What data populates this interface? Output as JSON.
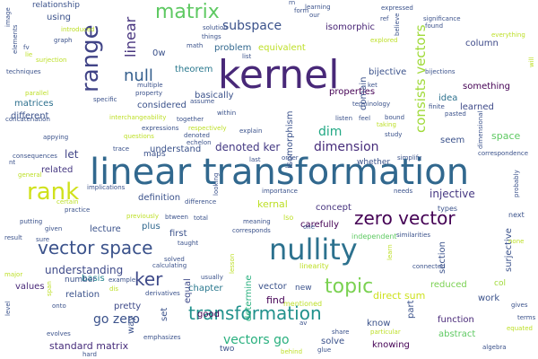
{
  "words": [
    {
      "text": "linear transformation",
      "color": "#31688e"
    },
    {
      "text": "kernel",
      "color": "#482878"
    },
    {
      "text": "nullity",
      "color": "#2c718e"
    },
    {
      "text": "rank",
      "color": "#d0e11c"
    },
    {
      "text": "range",
      "color": "#414487"
    },
    {
      "text": "matrix",
      "color": "#5ec962"
    },
    {
      "text": "zero vector",
      "color": "#440154"
    },
    {
      "text": "vector space",
      "color": "#3b528b"
    },
    {
      "text": "topic",
      "color": "#7ad151"
    },
    {
      "text": "transformation",
      "color": "#21918c"
    },
    {
      "text": "ker",
      "color": "#3e4a89"
    },
    {
      "text": "null",
      "color": "#355f8d"
    },
    {
      "text": "linear",
      "color": "#46337e"
    },
    {
      "text": "consists vectors",
      "color": "#a0da39"
    },
    {
      "text": "subspace",
      "color": "#3b528b"
    },
    {
      "text": "dimension",
      "color": "#472d7b"
    },
    {
      "text": "dim",
      "color": "#22a884"
    },
    {
      "text": "space",
      "color": "#5ec962"
    },
    {
      "text": "injective",
      "color": "#453781"
    },
    {
      "text": "go zero",
      "color": "#3b528b"
    },
    {
      "text": "vectors go",
      "color": "#2ab07f"
    },
    {
      "text": "denoted ker",
      "color": "#443983"
    },
    {
      "text": "isomorphic",
      "color": "#482475"
    },
    {
      "text": "theorem",
      "color": "#2a788e"
    },
    {
      "text": "problem",
      "color": "#31688e"
    },
    {
      "text": "equivalent",
      "color": "#bddf26"
    },
    {
      "text": "bijective",
      "color": "#3b528b"
    },
    {
      "text": "properties",
      "color": "#440154"
    },
    {
      "text": "something",
      "color": "#440154"
    },
    {
      "text": "idea",
      "color": "#2c718e"
    },
    {
      "text": "learned",
      "color": "#3e4a89"
    },
    {
      "text": "matrices",
      "color": "#2d708e"
    },
    {
      "text": "different",
      "color": "#3b528b"
    },
    {
      "text": "related",
      "color": "#453781"
    },
    {
      "text": "let",
      "color": "#414487"
    },
    {
      "text": "understanding",
      "color": "#3e4a89"
    },
    {
      "text": "basis",
      "color": "#25858e"
    },
    {
      "text": "relation",
      "color": "#3b528b"
    },
    {
      "text": "values",
      "color": "#482878"
    },
    {
      "text": "standard matrix",
      "color": "#472d7b"
    },
    {
      "text": "column",
      "color": "#3e4a89"
    },
    {
      "text": "concept",
      "color": "#46337e"
    },
    {
      "text": "find",
      "color": "#440154"
    },
    {
      "text": "solve",
      "color": "#3b528b"
    },
    {
      "text": "function",
      "color": "#482878"
    },
    {
      "text": "reduced",
      "color": "#7ad151"
    },
    {
      "text": "work",
      "color": "#3b528b"
    },
    {
      "text": "abstract",
      "color": "#5ec962"
    },
    {
      "text": "seem",
      "color": "#3b528b"
    },
    {
      "text": "kernal",
      "color": "#bddf26"
    },
    {
      "text": "carefully",
      "color": "#440154"
    },
    {
      "text": "vector",
      "color": "#3b528b"
    },
    {
      "text": "direct sum",
      "color": "#cde11d"
    },
    {
      "text": "definition",
      "color": "#3b528b"
    },
    {
      "text": "lecture",
      "color": "#3b528b"
    },
    {
      "text": "plus",
      "color": "#31688e"
    },
    {
      "text": "first",
      "color": "#3b528b"
    },
    {
      "text": "chapter",
      "color": "#2a788e"
    },
    {
      "text": "good",
      "color": "#440154"
    },
    {
      "text": "equal",
      "color": "#3e4a89"
    },
    {
      "text": "set",
      "color": "#3b528b"
    },
    {
      "text": "two",
      "color": "#3b528b"
    },
    {
      "text": "know",
      "color": "#3b528b"
    },
    {
      "text": "knowing",
      "color": "#440154"
    },
    {
      "text": "pretty",
      "color": "#3e4a89"
    },
    {
      "text": "number",
      "color": "#3b528b"
    },
    {
      "text": "understand",
      "color": "#3b528b"
    },
    {
      "text": "maps",
      "color": "#3b528b"
    },
    {
      "text": "considered",
      "color": "#3b528b"
    },
    {
      "text": "basically",
      "color": "#3b528b"
    },
    {
      "text": "using",
      "color": "#3b528b"
    },
    {
      "text": "relationship",
      "color": "#3b528b"
    },
    {
      "text": "isomorphism",
      "color": "#3b528b"
    },
    {
      "text": "surjective",
      "color": "#3b528b"
    },
    {
      "text": "domain",
      "color": "#3b528b"
    },
    {
      "text": "section",
      "color": "#3b528b"
    },
    {
      "text": "part",
      "color": "#3b528b"
    },
    {
      "text": "way",
      "color": "#3b528b"
    },
    {
      "text": "0w",
      "color": "#3b528b"
    },
    {
      "text": "whether",
      "color": "#3b528b"
    },
    {
      "text": "col",
      "color": "#a0da39"
    },
    {
      "text": "determine",
      "color": "#2ab07f"
    },
    {
      "text": "new",
      "color": "#3b528b"
    },
    {
      "text": "mentioned",
      "color": "#bddf26"
    },
    {
      "text": "linearity",
      "color": "#bddf26"
    },
    {
      "text": "independent",
      "color": "#5ec962"
    },
    {
      "text": "types",
      "color": "#3b528b"
    },
    {
      "text": "next",
      "color": "#3b528b"
    },
    {
      "text": "needs",
      "color": "#3b528b"
    },
    {
      "text": "importance",
      "color": "#3b528b"
    },
    {
      "text": "meaning",
      "color": "#3b528b"
    },
    {
      "text": "corresponds",
      "color": "#3b528b"
    },
    {
      "text": "lso",
      "color": "#bddf26"
    },
    {
      "text": "total",
      "color": "#3b528b"
    },
    {
      "text": "taught",
      "color": "#3b528b"
    },
    {
      "text": "solved",
      "color": "#3b528b"
    },
    {
      "text": "calculating",
      "color": "#3b528b"
    },
    {
      "text": "usually",
      "color": "#3b528b"
    },
    {
      "text": "derivatives",
      "color": "#3b528b"
    },
    {
      "text": "emphasizes",
      "color": "#3b528b"
    },
    {
      "text": "evolves",
      "color": "#3b528b"
    },
    {
      "text": "hard",
      "color": "#3b528b"
    },
    {
      "text": "onto",
      "color": "#3b528b"
    },
    {
      "text": "major",
      "color": "#bddf26"
    },
    {
      "text": "result",
      "color": "#3b528b"
    },
    {
      "text": "sure",
      "color": "#3b528b"
    },
    {
      "text": "practice",
      "color": "#3b528b"
    },
    {
      "text": "putting",
      "color": "#3b528b"
    },
    {
      "text": "given",
      "color": "#3b528b"
    },
    {
      "text": "certain",
      "color": "#bddf26"
    },
    {
      "text": "implications",
      "color": "#3b528b"
    },
    {
      "text": "trace",
      "color": "#3b528b"
    },
    {
      "text": "simplify",
      "color": "#3b528b"
    },
    {
      "text": "order",
      "color": "#3b528b"
    },
    {
      "text": "last",
      "color": "#3b528b"
    },
    {
      "text": "explain",
      "color": "#3b528b"
    },
    {
      "text": "study",
      "color": "#3b528b"
    },
    {
      "text": "terminology",
      "color": "#3b528b"
    },
    {
      "text": "listen",
      "color": "#3b528b"
    },
    {
      "text": "feel",
      "color": "#3b528b"
    },
    {
      "text": "bound",
      "color": "#3b528b"
    },
    {
      "text": "taking",
      "color": "#bddf26"
    },
    {
      "text": "finite",
      "color": "#3b528b"
    },
    {
      "text": "pasted",
      "color": "#3b528b"
    },
    {
      "text": "bijections",
      "color": "#3b528b"
    },
    {
      "text": "ref",
      "color": "#3b528b"
    },
    {
      "text": "explored",
      "color": "#bddf26"
    },
    {
      "text": "significance",
      "color": "#3b528b"
    },
    {
      "text": "found",
      "color": "#3b528b"
    },
    {
      "text": "everything",
      "color": "#bddf26"
    },
    {
      "text": "expressed",
      "color": "#3b528b"
    },
    {
      "text": "learning",
      "color": "#3b528b"
    },
    {
      "text": "form",
      "color": "#3b528b"
    },
    {
      "text": "rn",
      "color": "#3b528b"
    },
    {
      "text": "introduced",
      "color": "#bddf26"
    },
    {
      "text": "graph",
      "color": "#3b528b"
    },
    {
      "text": "surjection",
      "color": "#bddf26"
    },
    {
      "text": "techniques",
      "color": "#3b528b"
    },
    {
      "text": "parallel",
      "color": "#bddf26"
    },
    {
      "text": "specific",
      "color": "#3b528b"
    },
    {
      "text": "property",
      "color": "#3b528b"
    },
    {
      "text": "multiple",
      "color": "#3b528b"
    },
    {
      "text": "assume",
      "color": "#3b528b"
    },
    {
      "text": "within",
      "color": "#3b528b"
    },
    {
      "text": "interchangeability",
      "color": "#bddf26"
    },
    {
      "text": "together",
      "color": "#3b528b"
    },
    {
      "text": "expressions",
      "color": "#3b528b"
    },
    {
      "text": "respectively",
      "color": "#bddf26"
    },
    {
      "text": "appying",
      "color": "#3b528b"
    },
    {
      "text": "consequences",
      "color": "#3b528b"
    },
    {
      "text": "general",
      "color": "#bddf26"
    },
    {
      "text": "denoted",
      "color": "#3b528b"
    },
    {
      "text": "echelon",
      "color": "#3b528b"
    },
    {
      "text": "questions",
      "color": "#bddf26"
    },
    {
      "text": "difference",
      "color": "#3b528b"
    },
    {
      "text": "previously",
      "color": "#bddf26"
    },
    {
      "text": "btween",
      "color": "#3b528b"
    },
    {
      "text": "gives",
      "color": "#3b528b"
    },
    {
      "text": "terms",
      "color": "#3b528b"
    },
    {
      "text": "equated",
      "color": "#bddf26"
    },
    {
      "text": "algebra",
      "color": "#3b528b"
    },
    {
      "text": "share",
      "color": "#3b528b"
    },
    {
      "text": "particular",
      "color": "#bddf26"
    },
    {
      "text": "glue",
      "color": "#3b528b"
    },
    {
      "text": "behind",
      "color": "#bddf26"
    },
    {
      "text": "connected",
      "color": "#3b528b"
    },
    {
      "text": "similarities",
      "color": "#3b528b"
    },
    {
      "text": "none",
      "color": "#bddf26"
    },
    {
      "text": "probably",
      "color": "#3b528b"
    },
    {
      "text": "correspondence",
      "color": "#3b528b"
    },
    {
      "text": "dimensional",
      "color": "#3b528b"
    },
    {
      "text": "elements",
      "color": "#3b528b"
    },
    {
      "text": "image",
      "color": "#3b528b"
    },
    {
      "text": "math",
      "color": "#3b528b"
    },
    {
      "text": "list",
      "color": "#3b528b"
    },
    {
      "text": "things",
      "color": "#3b528b"
    },
    {
      "text": "solution",
      "color": "#3b528b"
    },
    {
      "text": "lesson",
      "color": "#bddf26"
    },
    {
      "text": "example",
      "color": "#3b528b"
    },
    {
      "text": "span",
      "color": "#bddf26"
    },
    {
      "text": "level",
      "color": "#3b528b"
    },
    {
      "text": "looking",
      "color": "#3b528b"
    },
    {
      "text": "believe",
      "color": "#3b528b"
    },
    {
      "text": "ket",
      "color": "#3b528b"
    },
    {
      "text": "learn",
      "color": "#bddf26"
    },
    {
      "text": "one",
      "color": "#3b528b"
    },
    {
      "text": "our",
      "color": "#3b528b"
    },
    {
      "text": "fv",
      "color": "#3b528b"
    },
    {
      "text": "lie",
      "color": "#bddf26"
    },
    {
      "text": "will",
      "color": "#bddf26"
    },
    {
      "text": "concatenation",
      "color": "#3b528b"
    },
    {
      "text": "nt",
      "color": "#3b528b"
    },
    {
      "text": "dis",
      "color": "#bddf26"
    },
    {
      "text": "av",
      "color": "#3b528b"
    }
  ]
}
